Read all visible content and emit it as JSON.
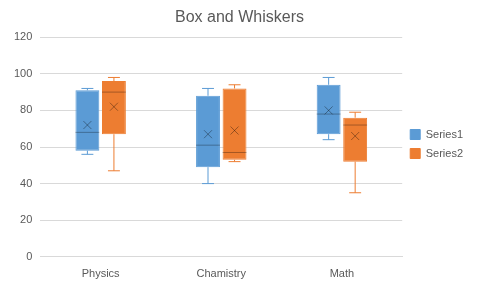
{
  "chart_data": {
    "type": "boxplot",
    "title": "Box and Whiskers",
    "categories": [
      "Physics",
      "Chamistry",
      "Math"
    ],
    "series": [
      {
        "name": "Series1",
        "color": "#5b9bd5",
        "min": [
          56,
          40,
          64
        ],
        "q1": [
          58,
          49,
          67
        ],
        "median": [
          68,
          61,
          78
        ],
        "q3": [
          91,
          88,
          94
        ],
        "max": [
          92,
          92,
          98
        ],
        "mean": [
          72,
          67,
          80
        ]
      },
      {
        "name": "Series2",
        "color": "#ed7d31",
        "min": [
          47,
          52,
          35
        ],
        "q1": [
          67,
          53,
          52
        ],
        "median": [
          90,
          57,
          72
        ],
        "q3": [
          96,
          92,
          76
        ],
        "max": [
          98,
          94,
          79
        ],
        "mean": [
          82,
          69,
          66
        ]
      }
    ],
    "ylim": [
      0,
      120
    ],
    "yticks": [
      0,
      20,
      40,
      60,
      80,
      100,
      120
    ],
    "grid": true,
    "legend": "right"
  }
}
